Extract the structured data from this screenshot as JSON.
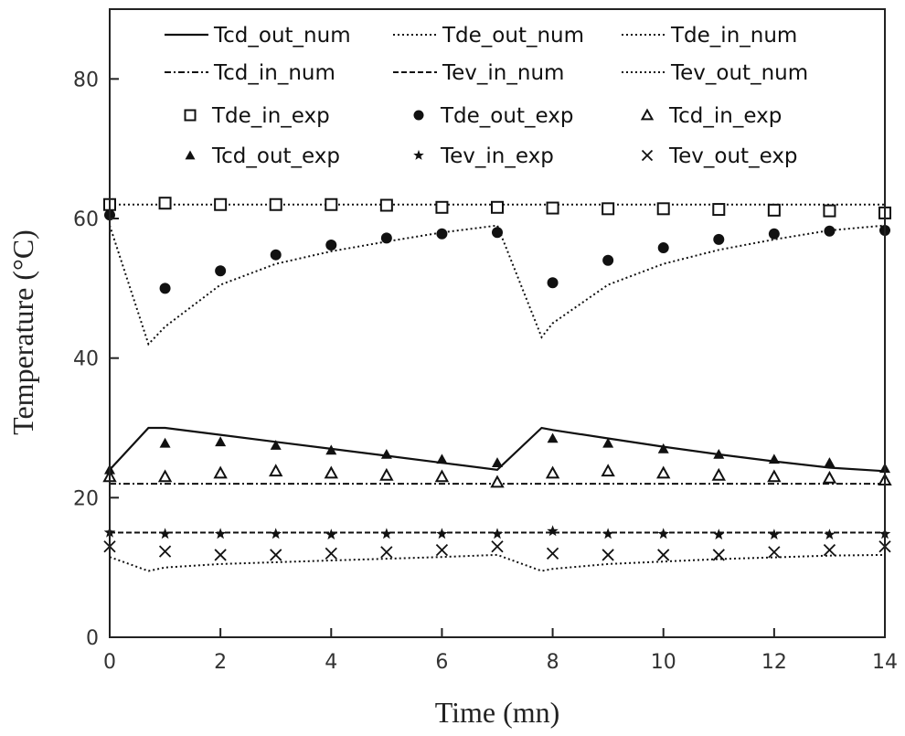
{
  "chart_data": {
    "type": "line",
    "xlabel": "Time (mn)",
    "ylabel": "Temperature (°C)",
    "xlim": [
      0,
      14
    ],
    "ylim": [
      0,
      90
    ],
    "xticks": [
      0,
      2,
      4,
      6,
      8,
      10,
      12,
      14
    ],
    "yticks": [
      0,
      20,
      40,
      60,
      80
    ],
    "grid": false,
    "legend_position": "top",
    "series_num": [
      {
        "name": "Tcd_out_num",
        "style": "solid",
        "x": [
          0,
          0.7,
          1,
          2,
          3,
          4,
          5,
          6,
          7,
          7.8,
          8,
          9,
          10,
          11,
          12,
          13,
          14
        ],
        "y": [
          24,
          30,
          30,
          29,
          28,
          27,
          26,
          25,
          24,
          30,
          29.7,
          28.5,
          27.3,
          26.2,
          25.2,
          24.3,
          23.8
        ]
      },
      {
        "name": "Tde_out_num",
        "style": "dotted",
        "x": [
          0,
          0.7,
          1,
          2,
          3,
          4,
          5,
          6,
          7,
          7.8,
          8,
          9,
          10,
          11,
          12,
          13,
          14
        ],
        "y": [
          59,
          42,
          44.5,
          50.5,
          53.5,
          55.3,
          56.7,
          58,
          59,
          43,
          45,
          50.5,
          53.5,
          55.5,
          57,
          58.3,
          59
        ]
      },
      {
        "name": "Tde_in_num",
        "style": "dotted",
        "x": [
          0,
          14
        ],
        "y": [
          62,
          62
        ]
      },
      {
        "name": "Tcd_in_num",
        "style": "dashdot",
        "x": [
          0,
          14
        ],
        "y": [
          22,
          22
        ]
      },
      {
        "name": "Tev_in_num",
        "style": "dashed",
        "x": [
          0,
          14
        ],
        "y": [
          15,
          15
        ]
      },
      {
        "name": "Tev_out_num",
        "style": "dotted",
        "x": [
          0,
          0.7,
          1,
          2,
          4,
          6,
          7,
          7.8,
          8,
          9,
          11,
          13,
          14
        ],
        "y": [
          11.5,
          9.5,
          10,
          10.5,
          11,
          11.5,
          11.8,
          9.5,
          9.8,
          10.5,
          11.2,
          11.7,
          11.8
        ]
      }
    ],
    "series_exp": [
      {
        "name": "Tde_in_exp",
        "marker": "open-square",
        "x": [
          0,
          1,
          2,
          3,
          4,
          5,
          6,
          7,
          8,
          9,
          10,
          11,
          12,
          13,
          14
        ],
        "y": [
          62,
          62.2,
          62,
          62,
          62,
          61.9,
          61.6,
          61.6,
          61.5,
          61.4,
          61.4,
          61.3,
          61.2,
          61.1,
          60.8
        ]
      },
      {
        "name": "Tde_out_exp",
        "marker": "filled-circle",
        "x": [
          0,
          1,
          2,
          3,
          4,
          5,
          6,
          7,
          8,
          9,
          10,
          11,
          12,
          13,
          14
        ],
        "y": [
          60.5,
          50,
          52.5,
          54.8,
          56.2,
          57.2,
          57.8,
          58,
          50.8,
          54,
          55.8,
          57,
          57.8,
          58.2,
          58.3
        ]
      },
      {
        "name": "Tcd_in_exp",
        "marker": "open-triangle",
        "x": [
          0,
          1,
          2,
          3,
          4,
          5,
          6,
          7,
          8,
          9,
          10,
          11,
          12,
          13,
          14
        ],
        "y": [
          23,
          23,
          23.5,
          23.8,
          23.5,
          23.2,
          23,
          22.2,
          23.5,
          23.8,
          23.5,
          23.2,
          23,
          22.8,
          22.5
        ]
      },
      {
        "name": "Tcd_out_exp",
        "marker": "filled-triangle",
        "x": [
          0,
          1,
          2,
          3,
          4,
          5,
          6,
          7,
          8,
          9,
          10,
          11,
          12,
          13,
          14
        ],
        "y": [
          24,
          27.8,
          28,
          27.5,
          26.8,
          26.2,
          25.5,
          25,
          28.5,
          27.8,
          27,
          26.2,
          25.5,
          25,
          24.2
        ]
      },
      {
        "name": "Tev_in_exp",
        "marker": "star",
        "x": [
          0,
          1,
          2,
          3,
          4,
          5,
          6,
          7,
          8,
          9,
          10,
          11,
          12,
          13,
          14
        ],
        "y": [
          15,
          14.8,
          14.8,
          14.8,
          14.7,
          14.8,
          14.8,
          14.8,
          15.2,
          14.8,
          14.8,
          14.7,
          14.7,
          14.7,
          14.8
        ]
      },
      {
        "name": "Tev_out_exp",
        "marker": "cross",
        "x": [
          0,
          1,
          2,
          3,
          4,
          5,
          6,
          7,
          8,
          9,
          10,
          11,
          12,
          13,
          14
        ],
        "y": [
          13,
          12.3,
          11.8,
          11.8,
          12,
          12.2,
          12.5,
          13,
          12,
          11.8,
          11.8,
          11.8,
          12.2,
          12.5,
          13
        ]
      }
    ],
    "legend_rows": [
      [
        {
          "label": "Tcd_out_num",
          "kind": "line",
          "style": "solid"
        },
        {
          "label": "Tde_out_num",
          "kind": "line",
          "style": "dotted"
        },
        {
          "label": "Tde_in_num",
          "kind": "line",
          "style": "dotted"
        }
      ],
      [
        {
          "label": "Tcd_in_num",
          "kind": "line",
          "style": "dashdot"
        },
        {
          "label": "Tev_in_num",
          "kind": "line",
          "style": "dashed"
        },
        {
          "label": "Tev_out_num",
          "kind": "line",
          "style": "dotted"
        }
      ],
      [
        {
          "label": "Tde_in_exp",
          "kind": "marker",
          "marker": "open-square"
        },
        {
          "label": "Tde_out_exp",
          "kind": "marker",
          "marker": "filled-circle"
        },
        {
          "label": "Tcd_in_exp",
          "kind": "marker",
          "marker": "open-triangle"
        }
      ],
      [
        {
          "label": "Tcd_out_exp",
          "kind": "marker",
          "marker": "filled-triangle"
        },
        {
          "label": "Tev_in_exp",
          "kind": "marker",
          "marker": "star"
        },
        {
          "label": "Tev_out_exp",
          "kind": "marker",
          "marker": "cross"
        }
      ]
    ],
    "colors": {
      "ink": "#111111",
      "axis": "#222222",
      "background": "#ffffff"
    }
  }
}
